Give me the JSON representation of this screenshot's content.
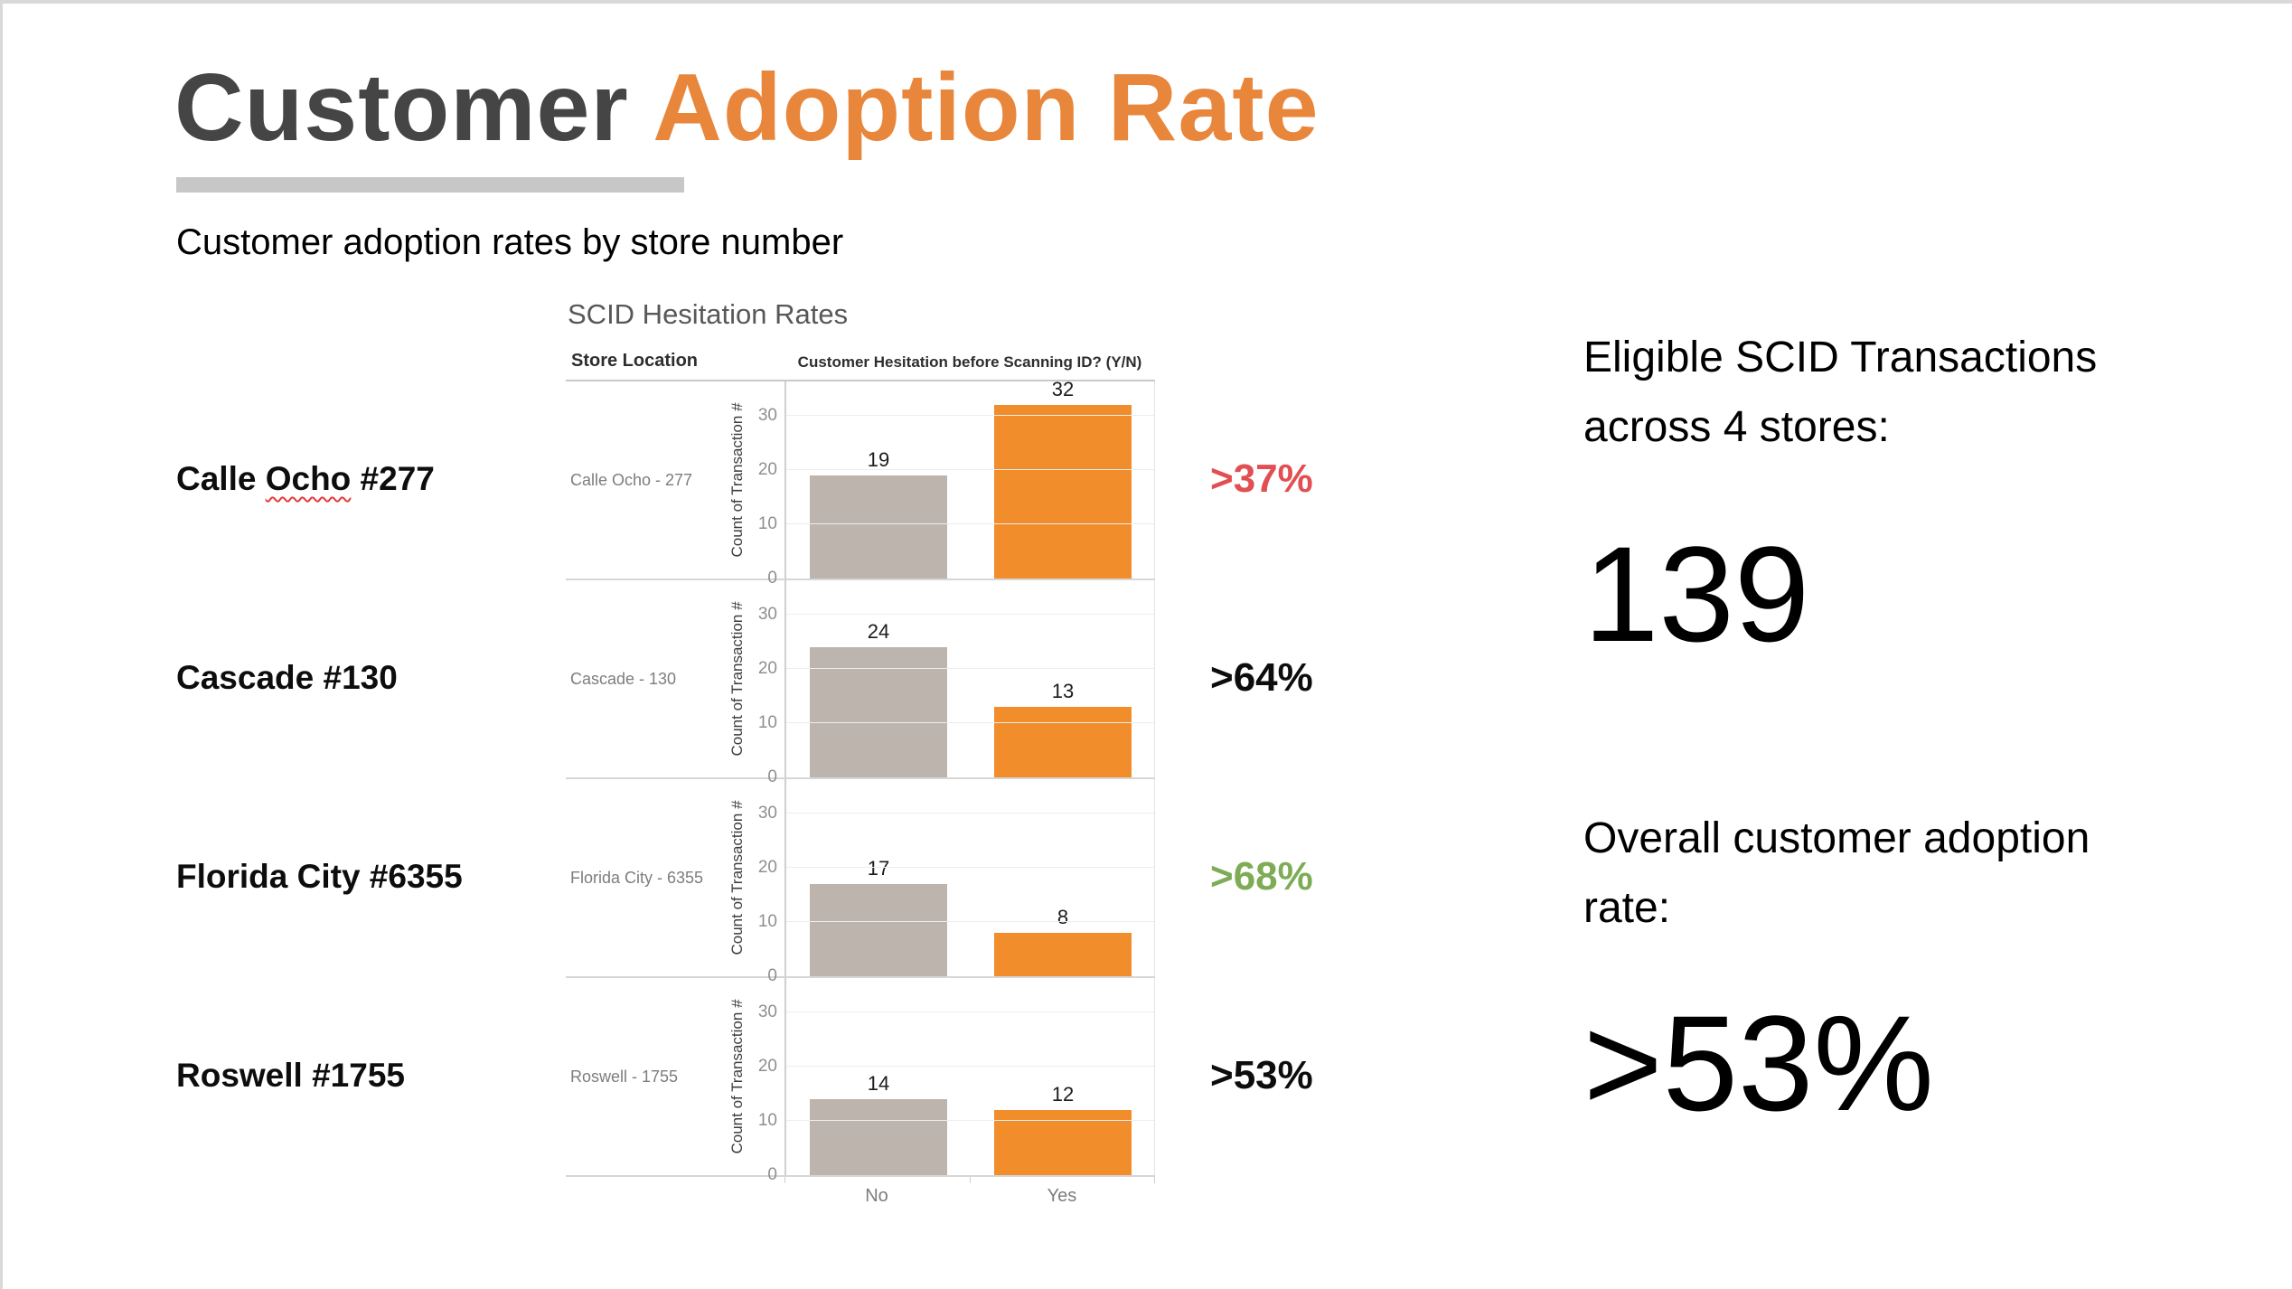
{
  "header": {
    "title_dark": "Customer ",
    "title_accent": "Adoption Rate",
    "subtitle": "Customer adoption rates by store number",
    "accent_color": "#e8863c",
    "underline_color": "#c7c7c7"
  },
  "chart_data": {
    "type": "bar",
    "title": "SCID Hesitation Rates",
    "col_headers": [
      "Store Location",
      "Customer Hesitation before Scanning ID? (Y/N)"
    ],
    "ylabel": "Count of Transaction #",
    "yticks": [
      30,
      20,
      10,
      0
    ],
    "ylim": [
      0,
      36
    ],
    "grid": "horizontal",
    "legend_position": "none",
    "categories": [
      "No",
      "Yes"
    ],
    "series_colors": {
      "no": "#bdb4ad",
      "yes": "#f28d2c"
    },
    "rows": [
      {
        "store": "Calle Ocho - 277",
        "label_pre": "Calle ",
        "label_squiggle": "Ocho",
        "label_post": " #277",
        "no": 19,
        "yes": 32,
        "rate": ">37%",
        "rate_color": "#e14f52"
      },
      {
        "store": "Cascade - 130",
        "label_pre": "Cascade #130",
        "label_squiggle": "",
        "label_post": "",
        "no": 24,
        "yes": 13,
        "rate": ">64%",
        "rate_color": "#0d0d0d"
      },
      {
        "store": "Florida City - 6355",
        "label_pre": "Florida City #6355",
        "label_squiggle": "",
        "label_post": "",
        "no": 17,
        "yes": 8,
        "rate": ">68%",
        "rate_color": "#7eac56"
      },
      {
        "store": "Roswell - 1755",
        "label_pre": "Roswell #1755",
        "label_squiggle": "",
        "label_post": "",
        "no": 14,
        "yes": 12,
        "rate": ">53%",
        "rate_color": "#0d0d0d"
      }
    ]
  },
  "right_panel": {
    "stat1_label": "Eligible SCID Transactions across 4 stores:",
    "stat1_value": "139",
    "stat2_label": "Overall customer adoption rate:",
    "stat2_value": ">53%"
  }
}
